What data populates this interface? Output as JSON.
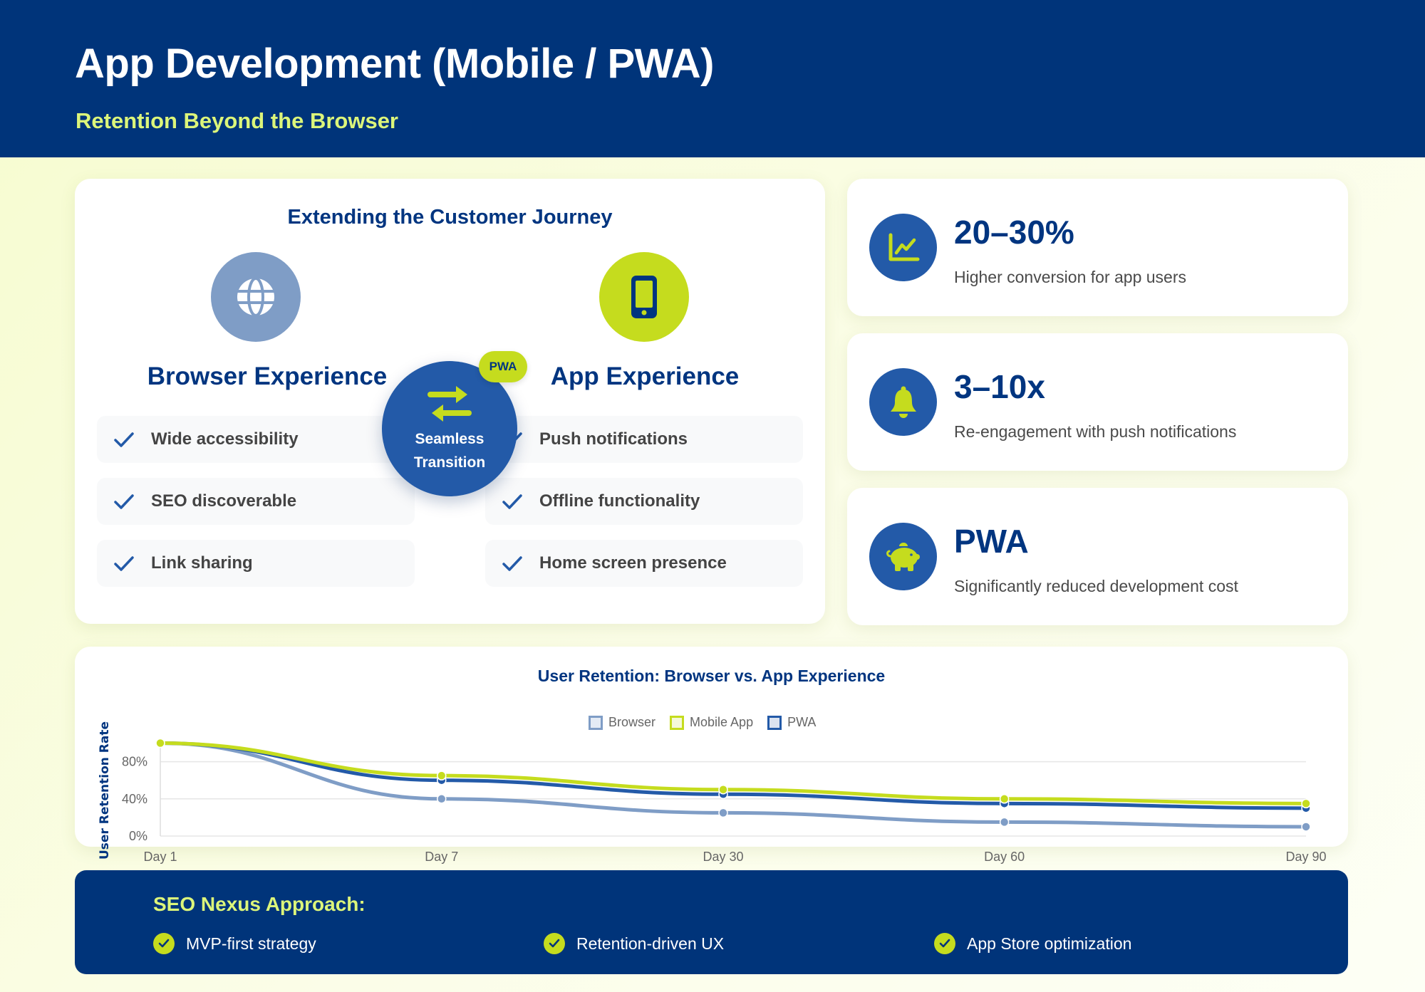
{
  "header": {
    "title": "App Development (Mobile / PWA)",
    "subtitle": "Retention Beyond the Browser"
  },
  "journey": {
    "title": "Extending the Customer Journey",
    "browser": {
      "icon": "globe-icon",
      "title": "Browser Experience",
      "features": [
        "Wide accessibility",
        "SEO discoverable",
        "Link sharing"
      ]
    },
    "app": {
      "icon": "smartphone-icon",
      "title": "App Experience",
      "features": [
        "Push notifications",
        "Offline functionality",
        "Home screen presence"
      ]
    },
    "transition": {
      "icon": "exchange-arrows-icon",
      "label_line1": "Seamless",
      "label_line2": "Transition",
      "badge": "PWA"
    }
  },
  "stats": [
    {
      "icon": "line-chart-icon",
      "value": "20–30%",
      "description": "Higher conversion for app users"
    },
    {
      "icon": "bell-icon",
      "value": "3–10x",
      "description": "Re-engagement with push notifications"
    },
    {
      "icon": "piggy-bank-icon",
      "value": "PWA",
      "description": "Significantly reduced development cost"
    }
  ],
  "chart": {
    "title": "User Retention: Browser vs. App Experience",
    "legend": [
      "Browser",
      "Mobile App",
      "PWA"
    ],
    "ylabel": "User Retention Rate",
    "yticks": [
      "80%",
      "40%",
      "0%"
    ],
    "xticks": [
      "Day 1",
      "Day 7",
      "Day 30",
      "Day 60",
      "Day 90"
    ]
  },
  "chart_data": {
    "type": "line",
    "title": "User Retention: Browser vs. App Experience",
    "xlabel": "",
    "ylabel": "User Retention Rate",
    "categories": [
      "Day 1",
      "Day 7",
      "Day 30",
      "Day 60",
      "Day 90"
    ],
    "series": [
      {
        "name": "Browser",
        "color": "#7f9dc6",
        "values": [
          100,
          40,
          25,
          15,
          10
        ]
      },
      {
        "name": "Mobile App",
        "color": "#c5dc1e",
        "values": [
          100,
          65,
          50,
          40,
          35
        ]
      },
      {
        "name": "PWA",
        "color": "#235aa8",
        "values": [
          100,
          60,
          45,
          35,
          30
        ]
      }
    ],
    "yticks": [
      0,
      40,
      80
    ],
    "ylim": [
      0,
      100
    ],
    "grid": true,
    "legend_position": "top"
  },
  "footer": {
    "title": "SEO Nexus Approach:",
    "points": [
      "MVP-first strategy",
      "Retention-driven UX",
      "App Store optimization"
    ]
  },
  "colors": {
    "navy": "#00347a",
    "blue": "#235aa8",
    "lime": "#c5dc1e",
    "light_blue": "#7f9dc6",
    "subtitle_lime": "#dcf57a"
  }
}
